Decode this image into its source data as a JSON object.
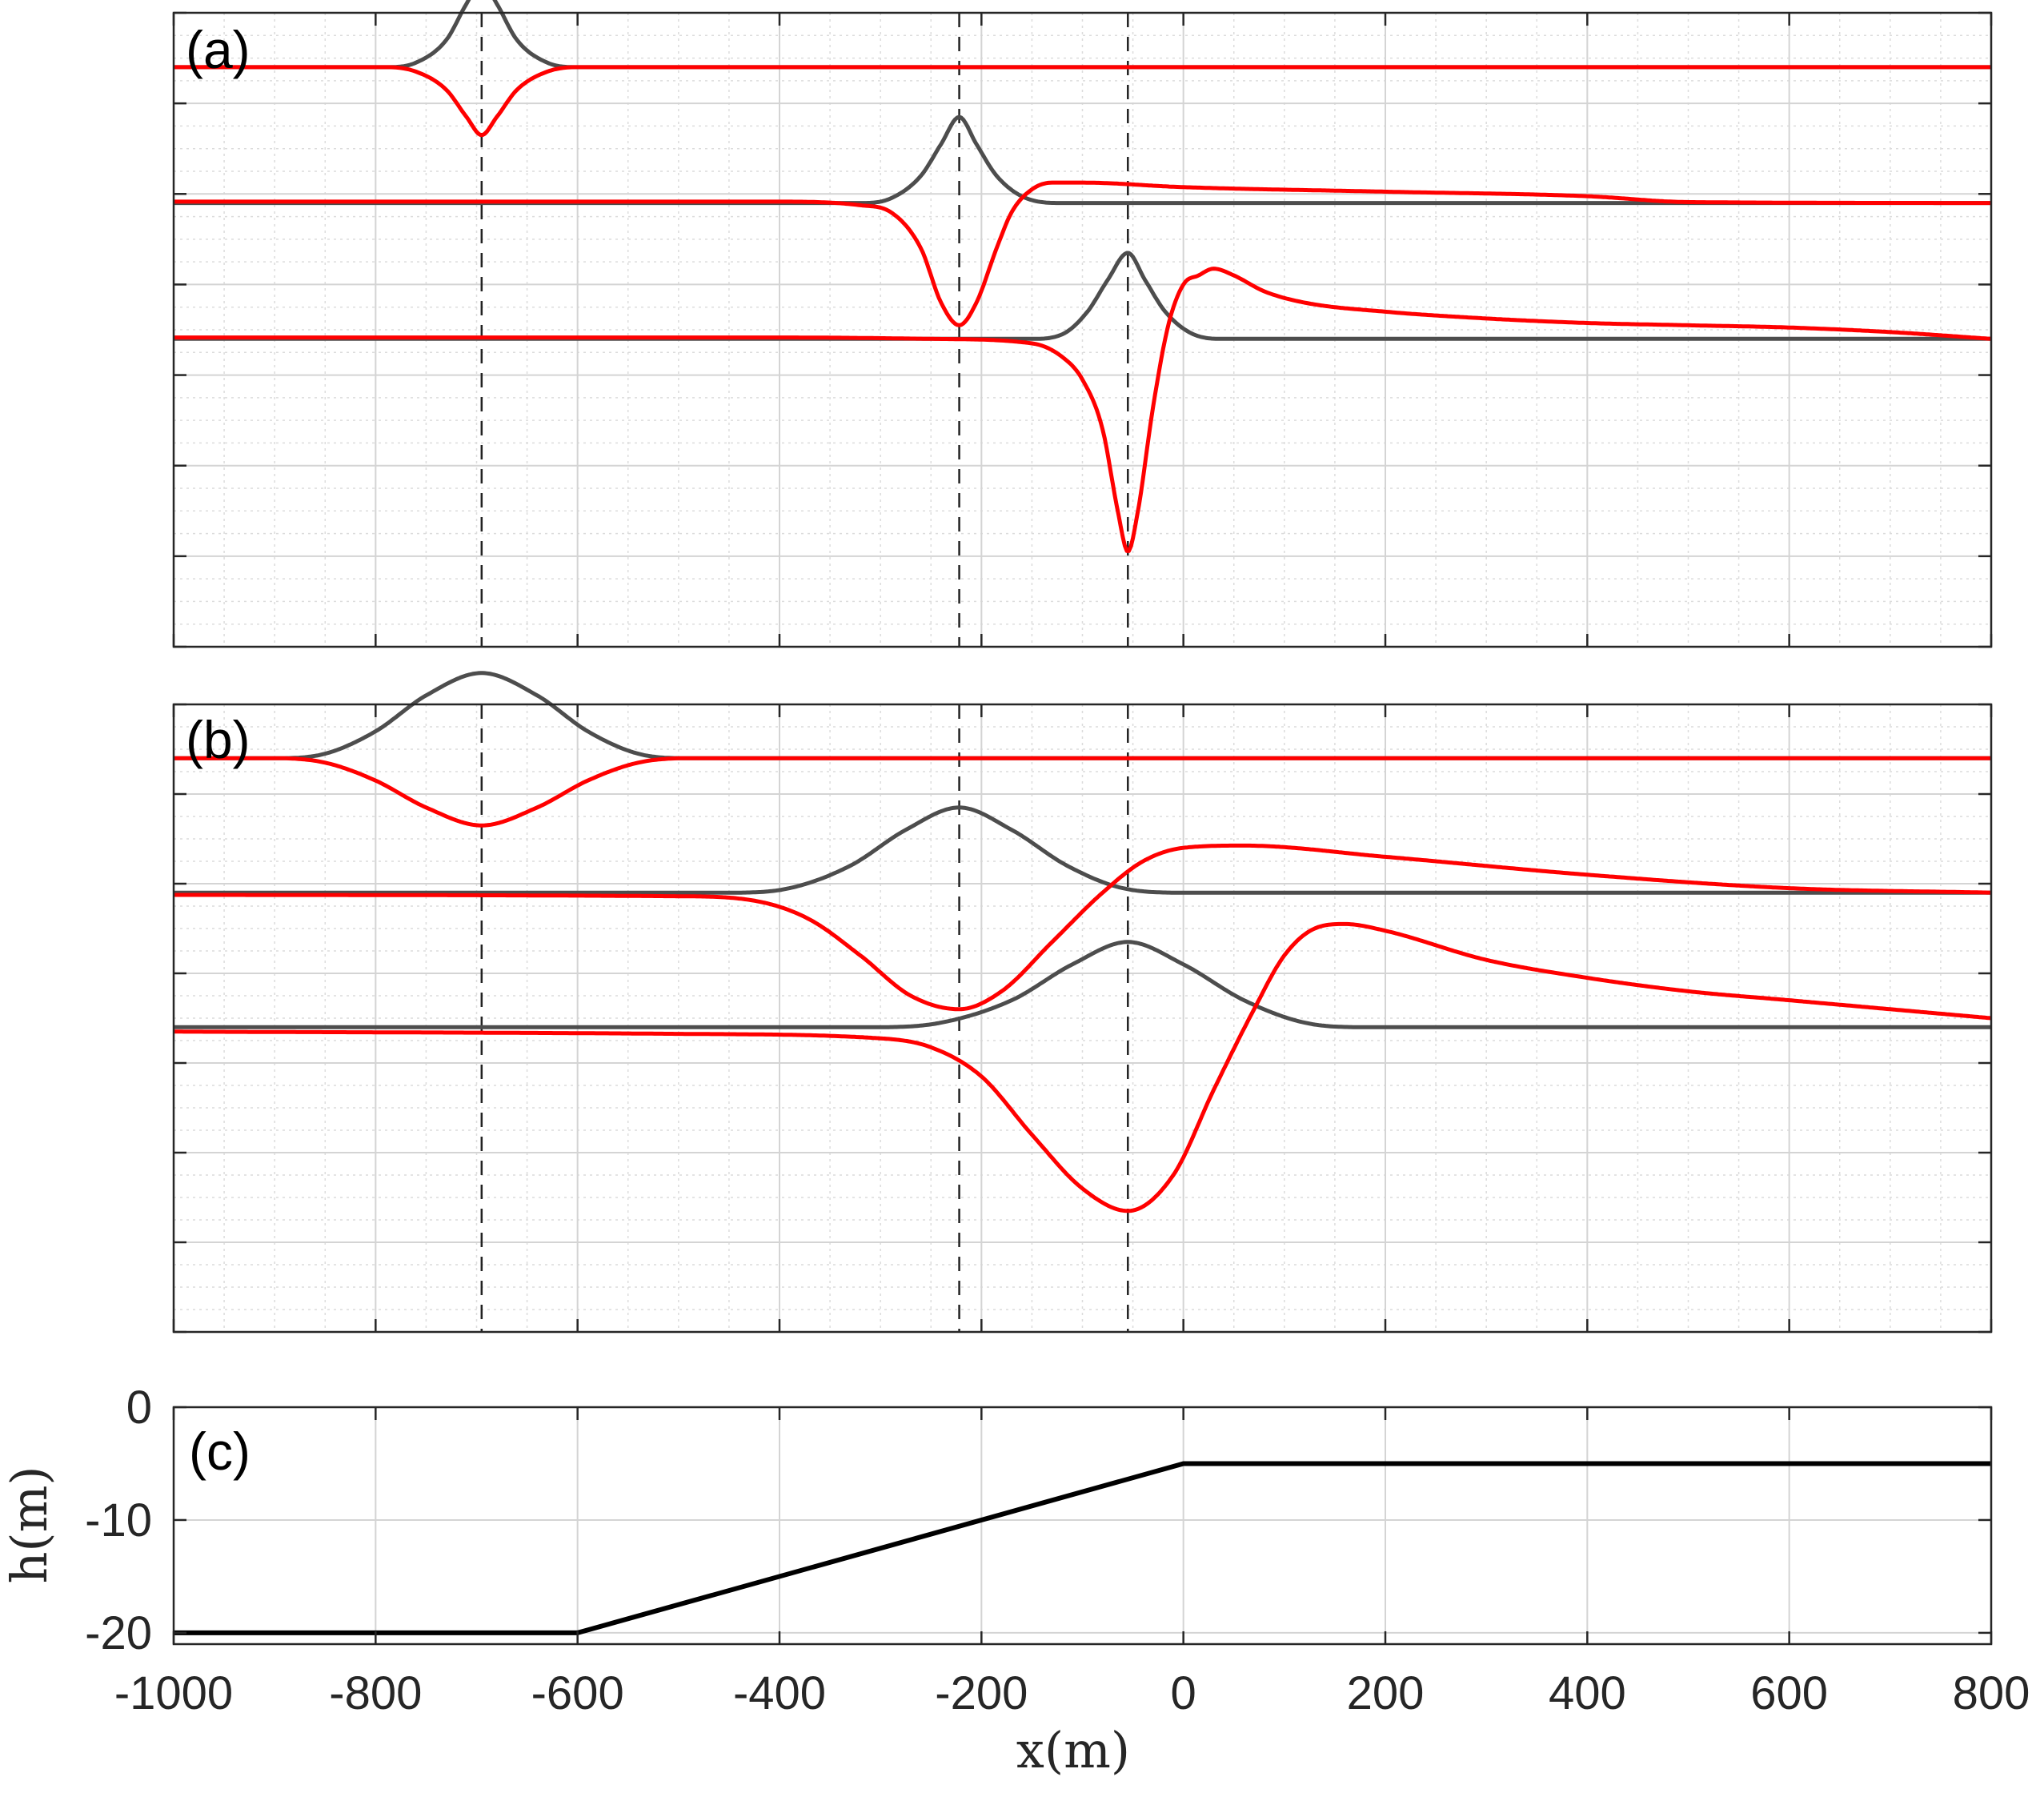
{
  "chart_data": [
    {
      "type": "line",
      "panel_label": "(a)",
      "xlim": [
        -1000,
        800
      ],
      "ylim": [
        -40,
        100
      ],
      "grid": true,
      "minor_grid": true,
      "y_tick_labels": false,
      "x_tick_labels": false,
      "reference_lines_x": [
        -695,
        -222,
        -55
      ],
      "series": [
        {
          "color": "#4d4d4d",
          "offset": 88,
          "x": [
            -1000,
            -790,
            -760,
            -730,
            -710,
            -695,
            -680,
            -660,
            -630,
            -600,
            800
          ],
          "values": [
            0,
            0,
            1,
            6,
            14,
            19,
            14,
            6,
            1,
            0,
            0
          ]
        },
        {
          "color": "#ff0000",
          "offset": 88,
          "x": [
            -1000,
            -790,
            -760,
            -730,
            -710,
            -695,
            -680,
            -660,
            -630,
            -600,
            800
          ],
          "values": [
            0,
            0,
            -1,
            -5,
            -11,
            -15,
            -11,
            -5,
            -1,
            0,
            0
          ]
        },
        {
          "color": "#4d4d4d",
          "offset": 58,
          "x": [
            -1000,
            -320,
            -290,
            -260,
            -240,
            -222,
            -205,
            -185,
            -155,
            -120,
            800
          ],
          "values": [
            0,
            0,
            1,
            6,
            13,
            19,
            13,
            6,
            1,
            0,
            0
          ]
        },
        {
          "color": "#ff0000",
          "offset": 58,
          "x": [
            -1000,
            -400,
            -320,
            -290,
            -260,
            -240,
            -222,
            -205,
            -185,
            -170,
            -150,
            -130,
            -100,
            0,
            200,
            400,
            500,
            800
          ],
          "values": [
            0.3,
            0.3,
            -0.5,
            -2,
            -10,
            -22,
            -27,
            -22,
            -10,
            -2,
            3,
            4.5,
            4.5,
            3.5,
            2.5,
            1.5,
            0.2,
            0
          ]
        },
        {
          "color": "#4d4d4d",
          "offset": 28,
          "x": [
            -1000,
            -150,
            -120,
            -95,
            -75,
            -55,
            -38,
            -18,
            10,
            40,
            800
          ],
          "values": [
            0,
            0,
            1,
            6,
            13,
            19,
            13,
            6,
            1,
            0,
            0
          ]
        },
        {
          "color": "#ff0000",
          "offset": 28,
          "x": [
            -1000,
            -400,
            -250,
            -150,
            -120,
            -100,
            -80,
            -65,
            -55,
            -45,
            -30,
            -15,
            0,
            15,
            30,
            50,
            80,
            120,
            200,
            300,
            400,
            500,
            600,
            700,
            800
          ],
          "values": [
            0.3,
            0.3,
            0,
            -1,
            -4,
            -9,
            -20,
            -38,
            -47,
            -38,
            -15,
            3,
            12,
            14,
            15.5,
            14,
            10.5,
            8,
            6,
            4.5,
            3.5,
            3,
            2.5,
            1.5,
            0
          ]
        }
      ]
    },
    {
      "type": "line",
      "panel_label": "(b)",
      "xlim": [
        -1000,
        800
      ],
      "ylim": [
        -40,
        100
      ],
      "grid": true,
      "minor_grid": true,
      "y_tick_labels": false,
      "x_tick_labels": false,
      "reference_lines_x": [
        -695,
        -222,
        -55
      ],
      "series": [
        {
          "color": "#4d4d4d",
          "offset": 88,
          "x": [
            -1000,
            -900,
            -850,
            -800,
            -750,
            -695,
            -640,
            -590,
            -540,
            -490,
            800
          ],
          "values": [
            0,
            0,
            1,
            6,
            14,
            19,
            14,
            6,
            1,
            0,
            0
          ]
        },
        {
          "color": "#ff0000",
          "offset": 88,
          "x": [
            -1000,
            -900,
            -850,
            -800,
            -750,
            -695,
            -640,
            -590,
            -540,
            -490,
            800
          ],
          "values": [
            0,
            0,
            -1,
            -5,
            -11,
            -15,
            -11,
            -5,
            -1,
            0,
            0
          ]
        },
        {
          "color": "#4d4d4d",
          "offset": 58,
          "x": [
            -1000,
            -450,
            -390,
            -330,
            -275,
            -222,
            -170,
            -115,
            -60,
            0,
            800
          ],
          "values": [
            0,
            0,
            1,
            6,
            14,
            19,
            14,
            6,
            1,
            0,
            0
          ]
        },
        {
          "color": "#ff0000",
          "offset": 58,
          "x": [
            -1000,
            -500,
            -420,
            -370,
            -320,
            -270,
            -222,
            -180,
            -130,
            -80,
            -40,
            0,
            60,
            200,
            400,
            600,
            800
          ],
          "values": [
            -0.5,
            -0.8,
            -2,
            -6,
            -14,
            -23,
            -26,
            -22,
            -11,
            0,
            7,
            10,
            10.5,
            8,
            4,
            1,
            0
          ]
        },
        {
          "color": "#4d4d4d",
          "offset": 28,
          "x": [
            -1000,
            -300,
            -240,
            -170,
            -110,
            -55,
            0,
            60,
            120,
            180,
            800
          ],
          "values": [
            0,
            0,
            1,
            6,
            14,
            19,
            14,
            6,
            1,
            0,
            0
          ]
        },
        {
          "color": "#ff0000",
          "offset": 28,
          "x": [
            -1000,
            -500,
            -300,
            -250,
            -200,
            -150,
            -100,
            -55,
            -10,
            30,
            70,
            100,
            130,
            160,
            200,
            300,
            400,
            500,
            600,
            700,
            800
          ],
          "values": [
            -1,
            -1.5,
            -2.5,
            -4.5,
            -11,
            -24,
            -36,
            -41,
            -33,
            -14,
            4,
            16,
            22,
            23,
            21.5,
            15,
            11,
            8,
            6,
            4,
            2
          ]
        }
      ]
    },
    {
      "type": "line",
      "panel_label": "(c)",
      "xlim": [
        -1000,
        800
      ],
      "ylim": [
        -21,
        0
      ],
      "xlabel": "x(m)",
      "ylabel": "h(m)",
      "grid": true,
      "x_ticks": [
        -1000,
        -800,
        -600,
        -400,
        -200,
        0,
        200,
        400,
        600,
        800
      ],
      "x_tick_labels": [
        "-1000",
        "-800",
        "-600",
        "-400",
        "-200",
        "0",
        "200",
        "400",
        "600",
        "800"
      ],
      "y_ticks": [
        0,
        -10,
        -20
      ],
      "y_tick_labels": [
        "0",
        "-10",
        "-20"
      ],
      "series": [
        {
          "color": "#000000",
          "x": [
            -1000,
            -600,
            0,
            800
          ],
          "values": [
            -20,
            -20,
            -5,
            -5
          ]
        }
      ]
    }
  ]
}
